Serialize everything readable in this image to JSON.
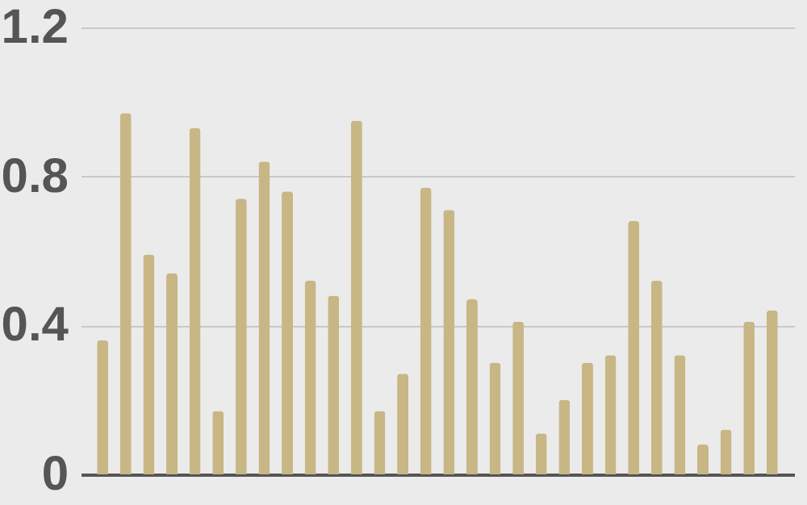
{
  "chart_data": {
    "type": "bar",
    "categories": [
      null,
      null,
      null,
      null,
      null,
      null,
      null,
      null,
      null,
      null,
      null,
      null,
      null,
      null,
      null,
      null,
      null,
      null,
      null,
      null,
      null,
      null,
      null,
      null,
      null,
      null,
      null,
      null,
      null,
      null
    ],
    "values": [
      0.36,
      0.97,
      0.59,
      0.54,
      0.93,
      0.17,
      0.74,
      0.84,
      0.76,
      0.52,
      0.48,
      0.95,
      0.17,
      0.27,
      0.77,
      0.71,
      0.47,
      0.3,
      0.41,
      0.11,
      0.2,
      0.3,
      0.32,
      0.68,
      0.52,
      0.32,
      0.08,
      0.12,
      0.41,
      0.44
    ],
    "color": "#c8b785",
    "ylim": [
      0,
      1.2
    ],
    "yticks": [
      0,
      0.4,
      0.8,
      1.2
    ],
    "grid": "y",
    "tick_labels": "y"
  }
}
